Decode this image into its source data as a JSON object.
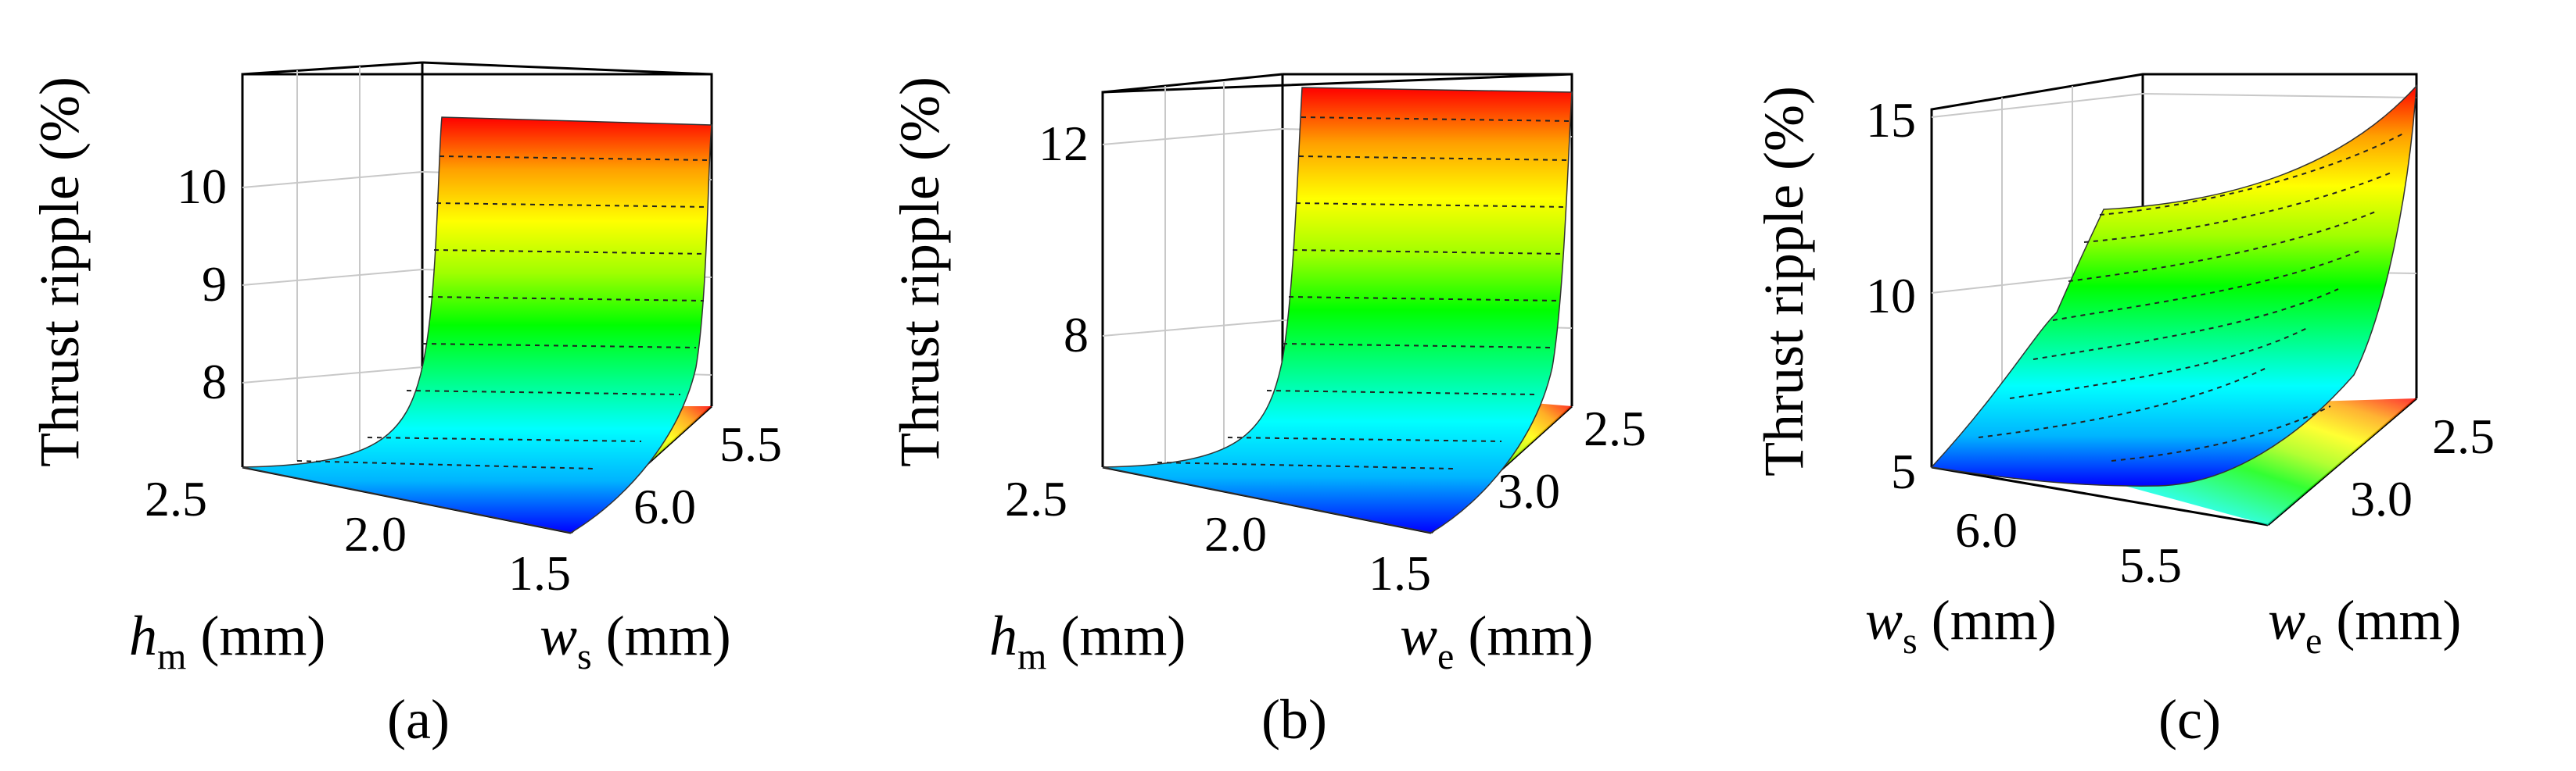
{
  "colors": {
    "colormap": [
      "#0000ff",
      "#00b4ff",
      "#00ffff",
      "#00ff80",
      "#00ff00",
      "#a0ff00",
      "#ffff00",
      "#ffa000",
      "#ff0000"
    ],
    "frame": "#000000",
    "grid": "#c8c8c8",
    "contour": "#222222"
  },
  "chart_data": [
    {
      "type": "surface",
      "caption": "(a)",
      "zlabel": "Thrust ripple (%)",
      "xlabel": {
        "symbol": "h",
        "subscript": "m",
        "unit": "(mm)"
      },
      "ylabel": {
        "symbol": "w",
        "subscript": "s",
        "unit": "(mm)"
      },
      "x_ticks": [
        "2.5",
        "2.0",
        "1.5"
      ],
      "y_ticks": [
        "5.5",
        "6.0"
      ],
      "z_ticks": [
        "8",
        "9",
        "10"
      ],
      "x_range": [
        1.5,
        2.5
      ],
      "y_range": [
        5.5,
        6.0
      ],
      "z_range": [
        7.2,
        10.8
      ],
      "x": [
        2.5,
        2.0,
        1.5
      ],
      "z_vs_x": [
        7.35,
        8.1,
        10.7
      ],
      "z_dependence_on_y": "negligible"
    },
    {
      "type": "surface",
      "caption": "(b)",
      "zlabel": "Thrust ripple (%)",
      "xlabel": {
        "symbol": "h",
        "subscript": "m",
        "unit": "(mm)"
      },
      "ylabel": {
        "symbol": "w",
        "subscript": "e",
        "unit": "(mm)"
      },
      "x_ticks": [
        "2.5",
        "2.0",
        "1.5"
      ],
      "y_ticks": [
        "2.5",
        "3.0"
      ],
      "z_ticks": [
        "8",
        "12"
      ],
      "x_range": [
        1.5,
        2.5
      ],
      "y_range": [
        2.5,
        3.0
      ],
      "z_range": [
        6.2,
        12.8
      ],
      "x": [
        2.5,
        2.0,
        1.5
      ],
      "z_vs_x": [
        6.5,
        8.3,
        12.5
      ],
      "z_dependence_on_y": "negligible"
    },
    {
      "type": "surface",
      "caption": "(c)",
      "zlabel": "Thrust ripple (%)",
      "xlabel": {
        "symbol": "w",
        "subscript": "s",
        "unit": "(mm)"
      },
      "ylabel": {
        "symbol": "w",
        "subscript": "e",
        "unit": "(mm)"
      },
      "x_ticks": [
        "6.0",
        "5.5"
      ],
      "y_ticks": [
        "2.5",
        "3.0"
      ],
      "z_ticks": [
        "5",
        "10",
        "15"
      ],
      "x_range": [
        5.5,
        6.0
      ],
      "y_range": [
        2.5,
        3.0
      ],
      "z_range": [
        4.8,
        15.8
      ],
      "corner_values": {
        "ws6.0_we3.0": 5.0,
        "ws5.5_we3.0": 5.1,
        "ws6.0_we2.5": 12.6,
        "ws5.5_we2.5": 15.5
      }
    }
  ]
}
